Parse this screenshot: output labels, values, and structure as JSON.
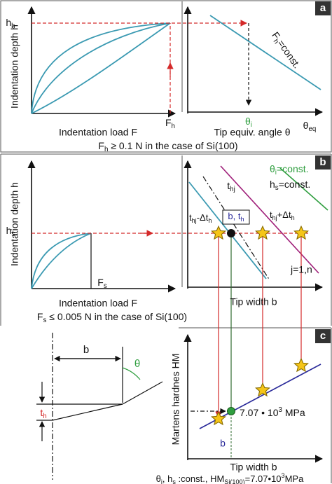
{
  "panel_a": {
    "letter": "a",
    "y_label": "Indentation depth h",
    "h_level": [
      "h",
      {
        "sub": "h"
      }
    ],
    "x_label": "Indentation load F",
    "load_mark": [
      "F",
      {
        "sub": "h"
      }
    ],
    "x2_label": "Tip equiv. angle θ",
    "x2_end": [
      "θ",
      {
        "sub": "eq"
      }
    ],
    "angle_mark": [
      "θ",
      {
        "sub": "i"
      }
    ],
    "line_label": [
      "F",
      {
        "sub": "h"
      },
      "=const."
    ],
    "caption": [
      "F",
      {
        "sub": "h"
      },
      " ≥ 0.1 N in the case of Si(100)"
    ]
  },
  "panel_b": {
    "letter": "b",
    "y_label": "Indentation depth h",
    "h_level": [
      "h",
      {
        "sub": "s"
      }
    ],
    "x_label": "Indentation load F",
    "load_mark": [
      "F",
      {
        "sub": "s"
      }
    ],
    "caption": [
      "F",
      {
        "sub": "s"
      },
      " ≤ 0.005 N in the case of Si(100)"
    ],
    "legend_theta": [
      "θ",
      {
        "sub": "i"
      },
      "=const."
    ],
    "legend_h": [
      "h",
      {
        "sub": "s"
      },
      "=const."
    ],
    "t_hj": [
      "t",
      {
        "sub": "hj"
      }
    ],
    "t_minus": [
      "t",
      {
        "sub": "hj"
      },
      "-Δt",
      {
        "sub": "h"
      }
    ],
    "box_label": [
      "b, ",
      "t",
      {
        "sub": "h"
      }
    ],
    "t_plus": [
      "t",
      {
        "sub": "hj"
      },
      "+Δt",
      {
        "sub": "h"
      }
    ],
    "j_range": "j=1,n",
    "x2_label": "Tip width b"
  },
  "panel_c": {
    "letter": "c",
    "width_label": "b",
    "angle_label": "θ",
    "depth_label": [
      "t",
      {
        "sub": "h"
      }
    ],
    "y_label": "Martens hardnes HM",
    "value_label": [
      "7.07 • 10",
      {
        "sup": "3"
      },
      " MPa"
    ],
    "b_mark": "b",
    "x_label": "Tip width b",
    "caption": [
      "θ",
      {
        "sub": "i"
      },
      ", h",
      {
        "sub": "s"
      },
      " :const., HM",
      {
        "sub": "Si(100)"
      },
      "=7.07•10",
      {
        "sup": "3"
      },
      "MPa"
    ]
  }
}
